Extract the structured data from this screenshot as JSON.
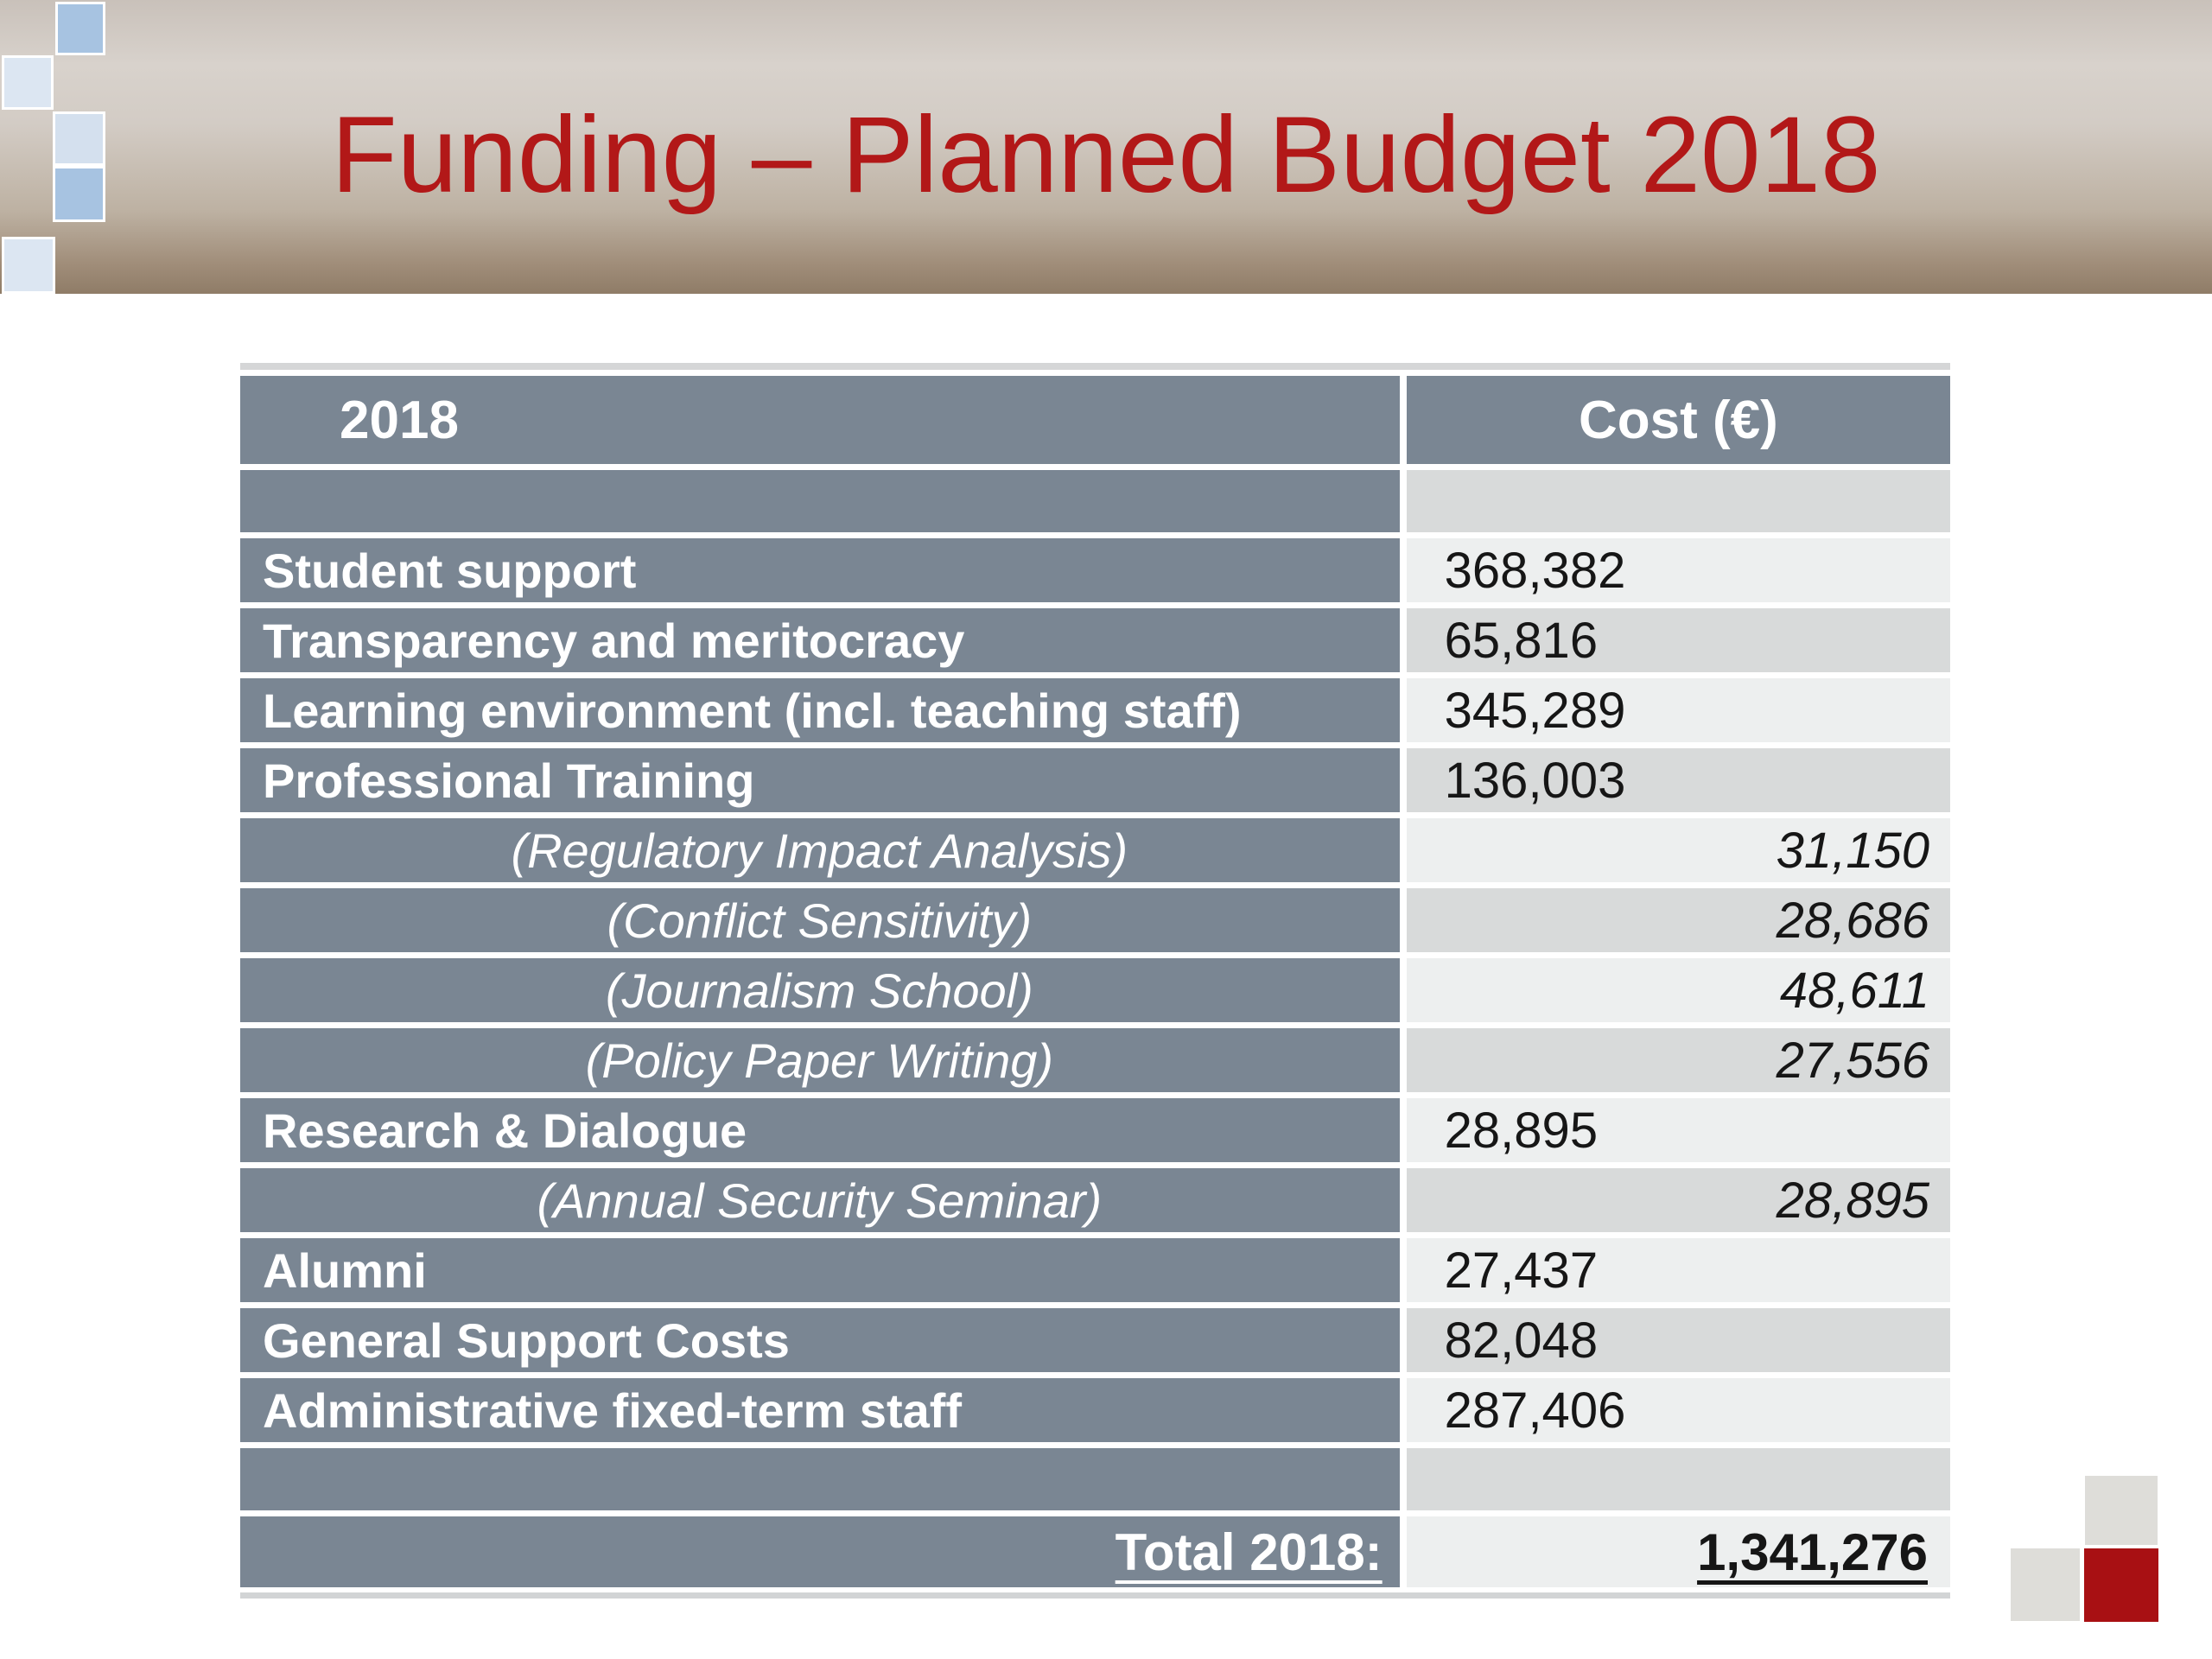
{
  "slide": {
    "title": "Funding – Planned Budget 2018"
  },
  "colors": {
    "title_red": "#b21818",
    "slate_header": "#7a8693",
    "cell_gray": "#d8dada",
    "cell_light": "#edefef",
    "accent_red_square": "#a81013",
    "deco_blue_medium": "#a7c3e1",
    "deco_blue_pale": "#dce6f2"
  },
  "table": {
    "columns": [
      "2018",
      "Cost (€)"
    ],
    "rows": [
      {
        "type": "empty",
        "shade": "gray",
        "label": "",
        "value": ""
      },
      {
        "type": "main",
        "shade": "light",
        "label": "Student support",
        "value": "368,382"
      },
      {
        "type": "main",
        "shade": "gray",
        "label": "Transparency and meritocracy",
        "value": "65,816"
      },
      {
        "type": "main",
        "shade": "light",
        "label": "Learning environment (incl. teaching staff)",
        "value": "345,289"
      },
      {
        "type": "main",
        "shade": "gray",
        "label": "Professional Training",
        "value": "136,003"
      },
      {
        "type": "sub",
        "shade": "light",
        "label": "(Regulatory Impact Analysis)",
        "value": "31,150"
      },
      {
        "type": "sub",
        "shade": "gray",
        "label": "(Conflict Sensitivity)",
        "value": "28,686"
      },
      {
        "type": "sub",
        "shade": "light",
        "label": "(Journalism School)",
        "value": "48,611"
      },
      {
        "type": "sub",
        "shade": "gray",
        "label": "(Policy Paper Writing)",
        "value": "27,556"
      },
      {
        "type": "main",
        "shade": "light",
        "label": "Research & Dialogue",
        "value": "28,895"
      },
      {
        "type": "sub",
        "shade": "gray",
        "label": "(Annual Security Seminar)",
        "value": "28,895"
      },
      {
        "type": "main",
        "shade": "light",
        "label": "Alumni",
        "value": "27,437"
      },
      {
        "type": "main",
        "shade": "gray",
        "label": "General Support Costs",
        "value": "82,048"
      },
      {
        "type": "main",
        "shade": "light",
        "label": "Administrative fixed-term staff",
        "value": "287,406"
      },
      {
        "type": "empty",
        "shade": "gray",
        "label": "",
        "value": ""
      },
      {
        "type": "total",
        "shade": "light",
        "label": "Total 2018:",
        "value": "1,341,276"
      }
    ]
  },
  "chart_data": {
    "type": "table",
    "title": "Funding – Planned Budget 2018",
    "columns": [
      "2018",
      "Cost (€)"
    ],
    "items": [
      {
        "category": "Student support",
        "cost_eur": 368382
      },
      {
        "category": "Transparency and meritocracy",
        "cost_eur": 65816
      },
      {
        "category": "Learning environment (incl. teaching staff)",
        "cost_eur": 345289
      },
      {
        "category": "Professional Training",
        "cost_eur": 136003,
        "sub_items": [
          {
            "category": "Regulatory Impact Analysis",
            "cost_eur": 31150
          },
          {
            "category": "Conflict Sensitivity",
            "cost_eur": 28686
          },
          {
            "category": "Journalism School",
            "cost_eur": 48611
          },
          {
            "category": "Policy Paper Writing",
            "cost_eur": 27556
          }
        ]
      },
      {
        "category": "Research & Dialogue",
        "cost_eur": 28895,
        "sub_items": [
          {
            "category": "Annual Security Seminar",
            "cost_eur": 28895
          }
        ]
      },
      {
        "category": "Alumni",
        "cost_eur": 27437
      },
      {
        "category": "General Support Costs",
        "cost_eur": 82048
      },
      {
        "category": "Administrative fixed-term staff",
        "cost_eur": 287406
      }
    ],
    "total": {
      "label": "Total 2018:",
      "cost_eur": 1341276
    }
  }
}
